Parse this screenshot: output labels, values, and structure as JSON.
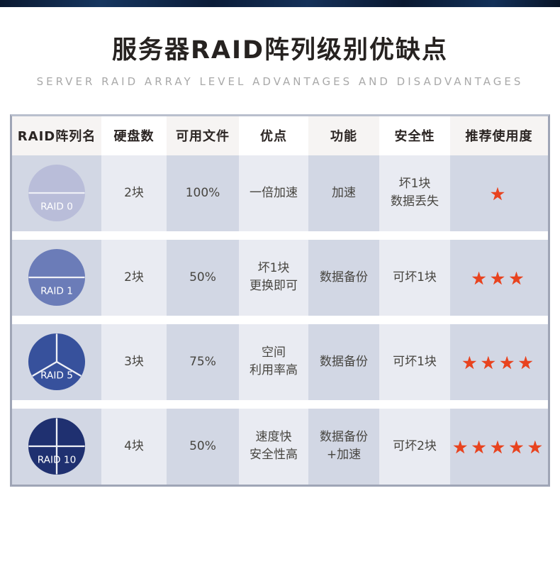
{
  "header": {
    "title": "服务器RAID阵列级别优缺点",
    "subtitle": "SERVER RAID ARRAY LEVEL ADVANTAGES AND DISADVANTAGES"
  },
  "table": {
    "columns": [
      "RAID阵列名",
      "硬盘数",
      "可用文件",
      "优点",
      "功能",
      "安全性",
      "推荐使用度"
    ],
    "star_color": "#e8431f",
    "divider_color": "#eef0f6",
    "rows": [
      {
        "name": "RAID 0",
        "disk_icon": "disk-2-segments",
        "disk_color": "#b9bdd9",
        "segments": 2,
        "disks": "2块",
        "usable": "100%",
        "advantage": "一倍加速",
        "function": "加速",
        "safety": "坏1块\n数据丢失",
        "stars": 1
      },
      {
        "name": "RAID 1",
        "disk_icon": "disk-2-segments",
        "disk_color": "#6b7cb8",
        "segments": 2,
        "disks": "2块",
        "usable": "50%",
        "advantage": "坏1块\n更换即可",
        "function": "数据备份",
        "safety": "可坏1块",
        "stars": 3
      },
      {
        "name": "RAID 5",
        "disk_icon": "disk-3-segments",
        "disk_color": "#37519c",
        "segments": 3,
        "disks": "3块",
        "usable": "75%",
        "advantage": "空间\n利用率高",
        "function": "数据备份",
        "safety": "可坏1块",
        "stars": 4
      },
      {
        "name": "RAID 10",
        "disk_icon": "disk-4-segments",
        "disk_color": "#1f3070",
        "segments": 4,
        "disks": "4块",
        "usable": "50%",
        "advantage": "速度快\n安全性高",
        "function": "数据备份\n+加速",
        "safety": "可坏2块",
        "stars": 5
      }
    ]
  }
}
